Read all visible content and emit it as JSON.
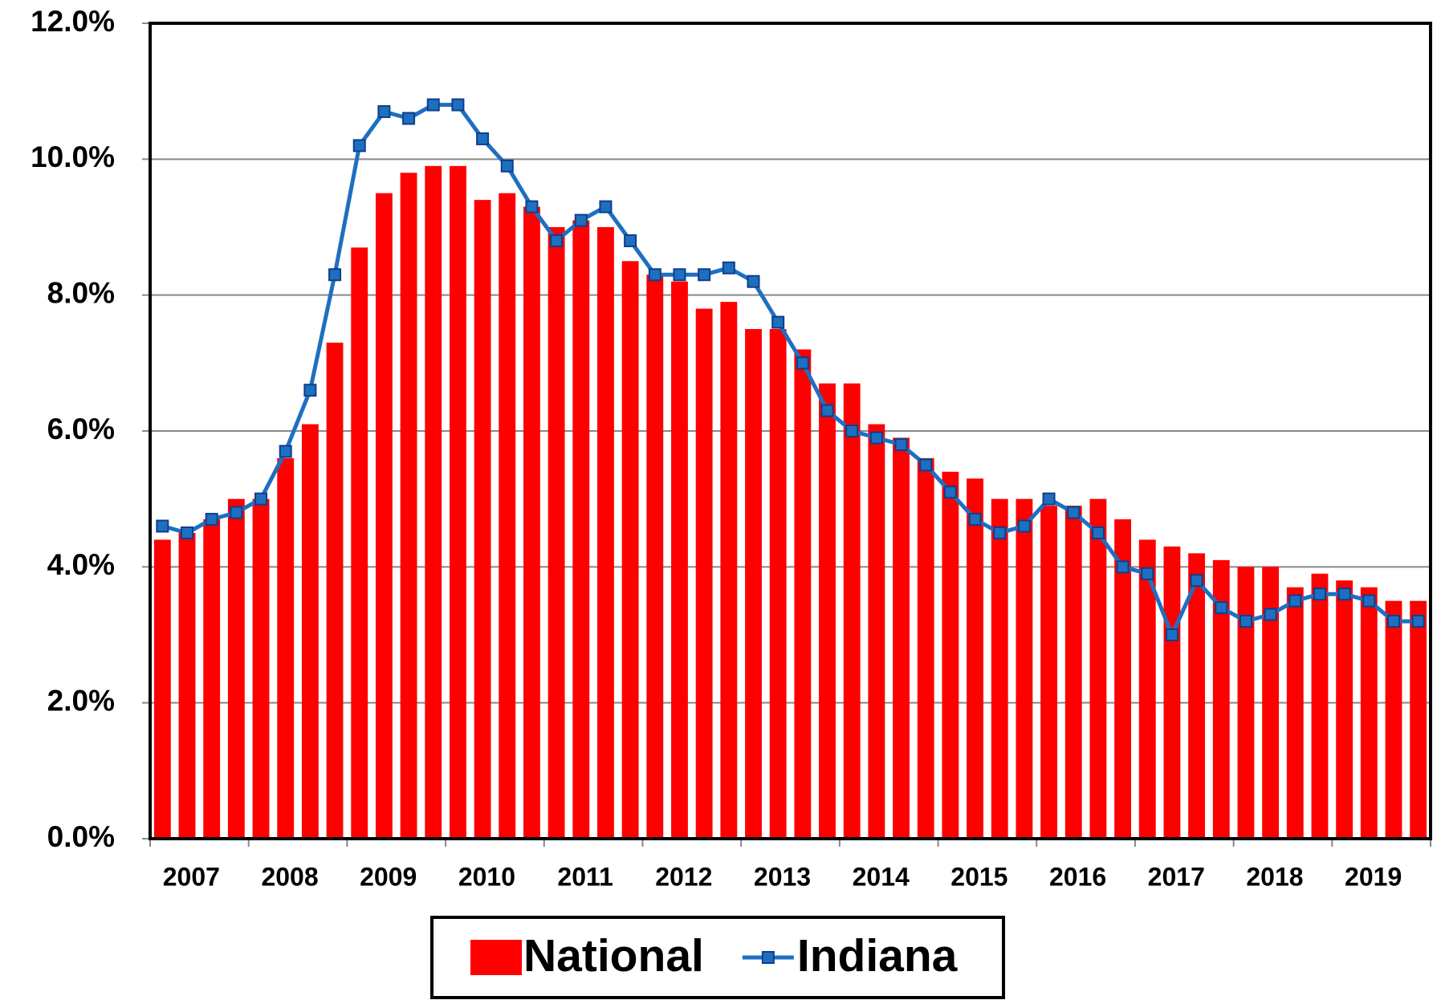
{
  "chart_data": {
    "type": "bar_line",
    "categories": [
      null,
      "2007",
      null,
      null,
      null,
      "2008",
      null,
      null,
      null,
      "2009",
      null,
      null,
      null,
      "2010",
      null,
      null,
      null,
      "2011",
      null,
      null,
      null,
      "2012",
      null,
      null,
      null,
      "2013",
      null,
      null,
      null,
      "2014",
      null,
      null,
      null,
      "2015",
      null,
      null,
      null,
      "2016",
      null,
      null,
      null,
      "2017",
      null,
      null,
      null,
      "2018",
      null,
      null,
      null,
      "2019",
      null,
      null
    ],
    "series": [
      {
        "name": "National",
        "type": "bar",
        "color": "#ff0000",
        "values": [
          4.4,
          4.5,
          4.7,
          5.0,
          5.0,
          5.6,
          6.1,
          7.3,
          8.7,
          9.5,
          9.8,
          9.9,
          9.9,
          9.4,
          9.5,
          9.3,
          9.0,
          9.1,
          9.0,
          8.5,
          8.3,
          8.2,
          7.8,
          7.9,
          7.5,
          7.5,
          7.2,
          6.7,
          6.7,
          6.1,
          5.9,
          5.6,
          5.4,
          5.3,
          5.0,
          5.0,
          4.9,
          4.9,
          5.0,
          4.7,
          4.4,
          4.3,
          4.2,
          4.1,
          4.0,
          4.0,
          3.7,
          3.9,
          3.8,
          3.7,
          3.5,
          3.5
        ]
      },
      {
        "name": "Indiana",
        "type": "line",
        "color": "#1f6fc0",
        "values": [
          4.6,
          4.5,
          4.7,
          4.8,
          5.0,
          5.7,
          6.6,
          8.3,
          10.2,
          10.7,
          10.6,
          10.8,
          10.8,
          10.3,
          9.9,
          9.3,
          8.8,
          9.1,
          9.3,
          8.8,
          8.3,
          8.3,
          8.3,
          8.4,
          8.2,
          7.6,
          7.0,
          6.3,
          6.0,
          5.9,
          5.8,
          5.5,
          5.1,
          4.7,
          4.5,
          4.6,
          5.0,
          4.8,
          4.5,
          4.0,
          3.9,
          3.0,
          3.8,
          3.4,
          3.2,
          3.3,
          3.5,
          3.6,
          3.6,
          3.5,
          3.2,
          3.2
        ]
      }
    ],
    "ylim": [
      0,
      12
    ],
    "yticks": [
      {
        "value": 0,
        "label": "0.0%"
      },
      {
        "value": 2,
        "label": "2.0%"
      },
      {
        "value": 4,
        "label": "4.0%"
      },
      {
        "value": 6,
        "label": "6.0%"
      },
      {
        "value": 8,
        "label": "8.0%"
      },
      {
        "value": 10,
        "label": "10.0%"
      },
      {
        "value": 12,
        "label": "12.0%"
      }
    ],
    "grid": true,
    "legend": "bottom"
  }
}
